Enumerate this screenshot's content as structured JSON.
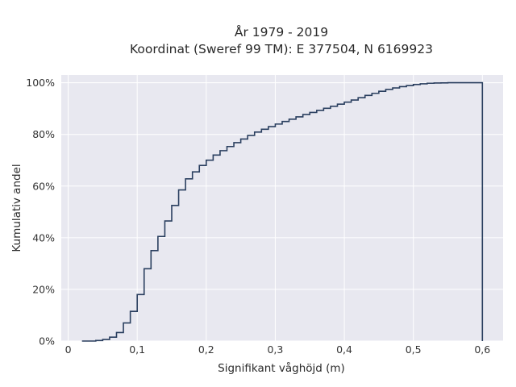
{
  "chart_data": {
    "type": "line",
    "step": "post",
    "title_lines": [
      "År 1979 - 2019",
      "Koordinat (Sweref 99 TM): E 377504, N 6169923"
    ],
    "xlabel": "Signifikant våghöjd (m)",
    "ylabel": "Kumulativ andel",
    "xlim": [
      -0.01,
      0.63
    ],
    "ylim": [
      0,
      1.03
    ],
    "x_ticks": [
      0,
      0.1,
      0.2,
      0.3,
      0.4,
      0.5,
      0.6
    ],
    "x_tick_labels": [
      "0",
      "0,1",
      "0,2",
      "0,3",
      "0,4",
      "0,5",
      "0,6"
    ],
    "y_ticks": [
      0,
      0.2,
      0.4,
      0.6,
      0.8,
      1.0
    ],
    "y_tick_labels": [
      "0%",
      "20%",
      "40%",
      "60%",
      "80%",
      "100%"
    ],
    "grid": true,
    "line_color": "#2a3f5f",
    "plot_background": "#e8e8f0",
    "x": [
      0.02,
      0.04,
      0.05,
      0.06,
      0.07,
      0.08,
      0.09,
      0.1,
      0.11,
      0.12,
      0.13,
      0.14,
      0.15,
      0.16,
      0.17,
      0.18,
      0.19,
      0.2,
      0.21,
      0.22,
      0.23,
      0.24,
      0.25,
      0.26,
      0.27,
      0.28,
      0.29,
      0.3,
      0.31,
      0.32,
      0.33,
      0.34,
      0.35,
      0.36,
      0.37,
      0.38,
      0.39,
      0.4,
      0.41,
      0.42,
      0.43,
      0.44,
      0.45,
      0.46,
      0.47,
      0.48,
      0.49,
      0.5,
      0.51,
      0.52,
      0.53,
      0.54,
      0.55,
      0.56,
      0.6
    ],
    "y": [
      0.0,
      0.002,
      0.006,
      0.015,
      0.033,
      0.07,
      0.115,
      0.18,
      0.28,
      0.35,
      0.405,
      0.465,
      0.525,
      0.585,
      0.628,
      0.655,
      0.68,
      0.7,
      0.72,
      0.737,
      0.753,
      0.768,
      0.782,
      0.796,
      0.809,
      0.82,
      0.83,
      0.84,
      0.85,
      0.859,
      0.868,
      0.877,
      0.885,
      0.893,
      0.901,
      0.909,
      0.917,
      0.925,
      0.933,
      0.942,
      0.951,
      0.959,
      0.967,
      0.974,
      0.98,
      0.985,
      0.989,
      0.993,
      0.996,
      0.998,
      0.999,
      0.9995,
      1.0,
      1.0,
      0.0
    ]
  }
}
